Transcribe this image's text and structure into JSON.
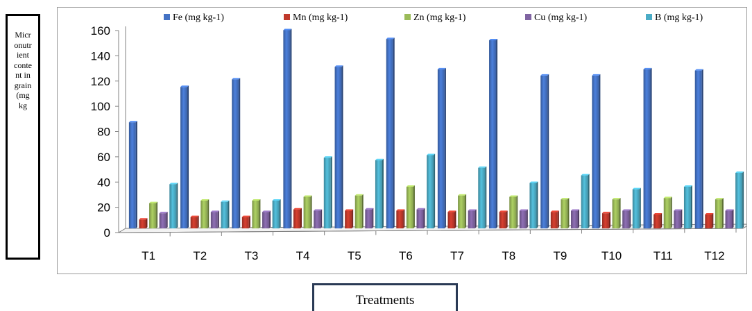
{
  "chart_data": {
    "type": "bar",
    "title": "",
    "xlabel": "Treatments",
    "ylabel": "Micronutrient content in grain (mg kg",
    "ylim": [
      0,
      160
    ],
    "yticks": [
      0,
      20,
      40,
      60,
      80,
      100,
      120,
      140,
      160
    ],
    "legend_position": "top",
    "categories": [
      "T1",
      "T2",
      "T3",
      "T4",
      "T5",
      "T6",
      "T7",
      "T8",
      "T9",
      "T10",
      "T11",
      "T12"
    ],
    "series": [
      {
        "name": "Fe (mg kg-1)",
        "color": "#4472c4",
        "values": [
          84,
          112,
          118,
          157,
          128,
          150,
          126,
          149,
          121,
          121,
          126,
          125
        ]
      },
      {
        "name": "Mn (mg kg-1)",
        "color": "#c0392b",
        "values": [
          7,
          9,
          9,
          15,
          14,
          14,
          13,
          13,
          13,
          12,
          11,
          11
        ]
      },
      {
        "name": "Zn (mg kg-1)",
        "color": "#9bbb59",
        "values": [
          20,
          22,
          22,
          25,
          26,
          33,
          26,
          25,
          23,
          23,
          24,
          23
        ]
      },
      {
        "name": "Cu (mg kg-1)",
        "color": "#8064a2",
        "values": [
          12,
          13,
          13,
          14,
          15,
          15,
          14,
          14,
          14,
          14,
          14,
          14
        ]
      },
      {
        "name": "B (mg kg-1)",
        "color": "#4bacc6",
        "values": [
          35,
          21,
          22,
          56,
          54,
          58,
          48,
          36,
          42,
          31,
          33,
          44
        ]
      }
    ]
  }
}
